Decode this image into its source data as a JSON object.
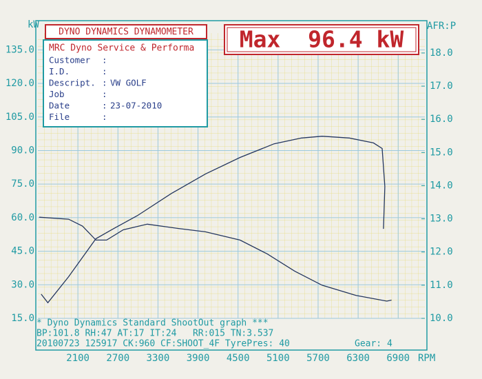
{
  "header": {
    "title": "DYNO DYNAMICS DYNAMOMETER",
    "max": "Max  96.4 kW",
    "company": "MRC Dyno Service & Performa",
    "rows": [
      [
        "Customer",
        ":"
      ],
      [
        "I.D.",
        ":"
      ],
      [
        "Descript.",
        ":",
        "VW GOLF"
      ],
      [
        "Job",
        ":"
      ],
      [
        "Date",
        ":",
        "23-07-2010"
      ],
      [
        "File",
        ":"
      ]
    ]
  },
  "footer": {
    "lines": [
      "* Dyno Dynamics Standard ShootOut graph ***",
      "BP:101.8 RH:47 AT:17 IT:24   RR:015 TN:3.537",
      "20100723 125917 CK:960 CF:SHOOT_4F TyrePres: 40"
    ],
    "gear": "Gear: 4"
  },
  "chart_data": {
    "type": "line",
    "ylabel": "kW",
    "y2label": "AFR:P",
    "xlabel": "RPM",
    "xlim": [
      1500,
      7300
    ],
    "xticks": [
      2100,
      2700,
      3300,
      3900,
      4500,
      5100,
      5700,
      6300,
      6900
    ],
    "ylim": [
      15,
      142.5
    ],
    "yticks": [
      {
        "value": 15,
        "label": "15.0"
      },
      {
        "value": 30,
        "label": "30.0"
      },
      {
        "value": 45,
        "label": "45.0"
      },
      {
        "value": 60,
        "label": "60.0"
      },
      {
        "value": 75,
        "label": "75.0"
      },
      {
        "value": 90,
        "label": "90.0"
      },
      {
        "value": 105,
        "label": "105.0"
      },
      {
        "value": 120,
        "label": "120.0"
      },
      {
        "value": 135,
        "label": "135.0"
      }
    ],
    "y2lim": [
      10,
      18.6
    ],
    "y2ticks": [
      {
        "value": 10,
        "label": "10.0"
      },
      {
        "value": 11,
        "label": "11.0"
      },
      {
        "value": 12,
        "label": "12.0"
      },
      {
        "value": 13,
        "label": "13.0"
      },
      {
        "value": 14,
        "label": "14.0"
      },
      {
        "value": 15,
        "label": "15.0"
      },
      {
        "value": 16,
        "label": "16.0"
      },
      {
        "value": 17,
        "label": "17.0"
      },
      {
        "value": 18,
        "label": "18.0"
      }
    ],
    "grid": true,
    "series": [
      {
        "color": "#24365e",
        "x": [
          1550,
          1650,
          1960,
          2370,
          2630,
          2990,
          3500,
          4010,
          4530,
          5040,
          5450,
          5760,
          6170,
          6530,
          6660,
          6700,
          6680
        ],
        "values": [
          25.8,
          22,
          33.6,
          50.6,
          55,
          60.9,
          70.8,
          79.5,
          86.9,
          93,
          95.6,
          96.4,
          95.6,
          93.4,
          90.9,
          73.9,
          55
        ]
      },
      {
        "color": "#24365e",
        "axis": "y2",
        "x": [
          1520,
          1960,
          2170,
          2370,
          2530,
          2780,
          3140,
          3600,
          4010,
          4530,
          4940,
          5350,
          5760,
          6270,
          6730,
          6800
        ],
        "values": [
          13.05,
          12.99,
          12.78,
          12.36,
          12.36,
          12.67,
          12.84,
          12.71,
          12.61,
          12.36,
          11.94,
          11.42,
          11.0,
          10.69,
          10.52,
          10.55
        ]
      }
    ]
  }
}
